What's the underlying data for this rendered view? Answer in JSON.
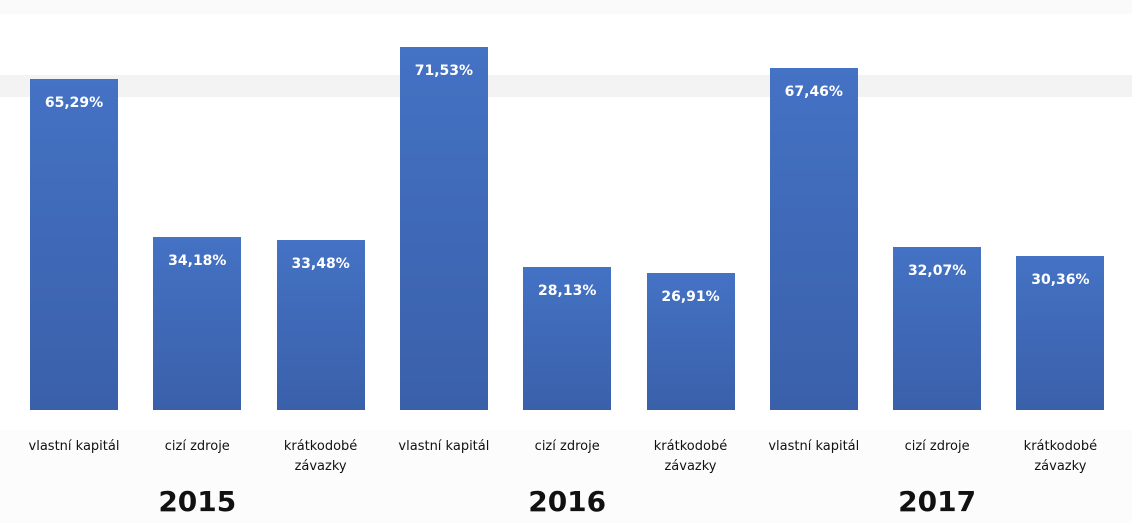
{
  "chart_data": {
    "type": "bar",
    "categories": [
      "vlastní kapitál",
      "cizí zdroje",
      "krátkodobé závazky",
      "vlastní kapitál",
      "cizí zdroje",
      "krátkodobé závazky",
      "vlastní kapitál",
      "cizí zdroje",
      "krátkodobé závazky"
    ],
    "values": [
      65.29,
      34.18,
      33.48,
      71.53,
      28.13,
      26.91,
      67.46,
      32.07,
      30.36
    ],
    "value_labels": [
      "65,29%",
      "34,18%",
      "33,48%",
      "71,53%",
      "28,13%",
      "26,91%",
      "67,46%",
      "32,07%",
      "30,36%"
    ],
    "groups": [
      "2015",
      "2016",
      "2017"
    ],
    "color": "#4472c4"
  }
}
